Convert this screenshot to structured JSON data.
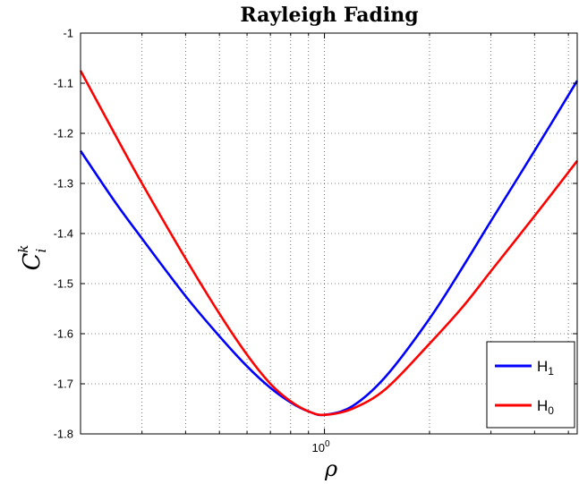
{
  "chart_data": {
    "type": "line",
    "title": "Rayleigh Fading",
    "xlabel": "ρ",
    "ylabel": {
      "base": "C",
      "subscript": "i",
      "superscript": "k"
    },
    "xscale": "log",
    "xlim": [
      0.2,
      5.3
    ],
    "ylim": [
      -1.8,
      -1
    ],
    "yticks": [
      -1,
      -1.1,
      -1.2,
      -1.3,
      -1.4,
      -1.5,
      -1.6,
      -1.7,
      -1.8
    ],
    "ytick_labels": [
      "-1",
      "-1.1",
      "-1.2",
      "-1.3",
      "-1.4",
      "-1.5",
      "-1.6",
      "-1.7",
      "-1.8"
    ],
    "xtick_label": {
      "base": "10",
      "exponent": "0"
    },
    "grid": true,
    "legend_position": "bottom-right",
    "series": [
      {
        "name": "H1",
        "legend_base": "H",
        "legend_sub": "1",
        "color": "#0000ff",
        "x": [
          0.2,
          0.25,
          0.3,
          0.4,
          0.5,
          0.6,
          0.7,
          0.8,
          0.9,
          1.0,
          1.2,
          1.5,
          2.0,
          2.5,
          3.0,
          4.0,
          5.3
        ],
        "y": [
          -1.235,
          -1.335,
          -1.41,
          -1.525,
          -1.605,
          -1.665,
          -1.708,
          -1.737,
          -1.755,
          -1.762,
          -1.745,
          -1.685,
          -1.57,
          -1.465,
          -1.375,
          -1.235,
          -1.095
        ]
      },
      {
        "name": "H0",
        "legend_base": "H",
        "legend_sub": "0",
        "color": "#ff0000",
        "x": [
          0.2,
          0.25,
          0.3,
          0.4,
          0.5,
          0.6,
          0.7,
          0.8,
          0.9,
          1.0,
          1.2,
          1.5,
          2.0,
          2.5,
          3.0,
          4.0,
          5.3
        ],
        "y": [
          -1.075,
          -1.2,
          -1.3,
          -1.45,
          -1.56,
          -1.642,
          -1.7,
          -1.735,
          -1.755,
          -1.762,
          -1.75,
          -1.71,
          -1.62,
          -1.545,
          -1.475,
          -1.365,
          -1.255
        ]
      }
    ]
  }
}
